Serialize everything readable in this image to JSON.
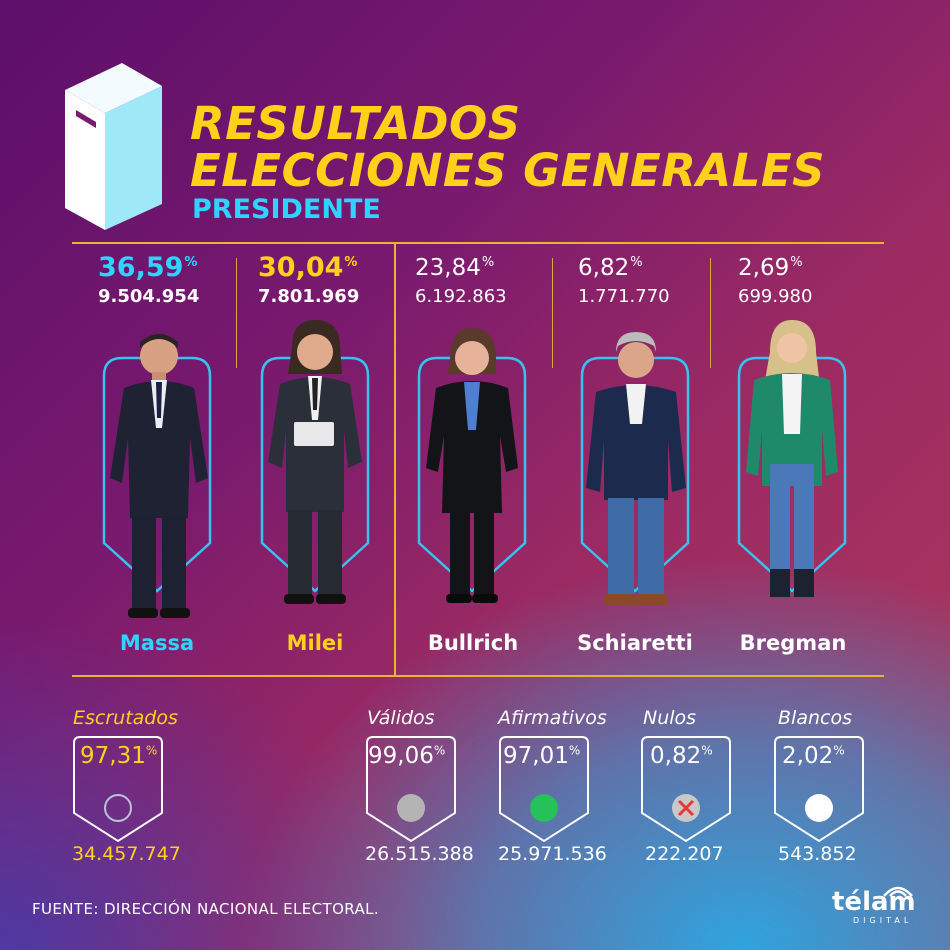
{
  "header": {
    "title_line1": "RESULTADOS",
    "title_line2": "ELECCIONES GENERALES",
    "subtitle": "PRESIDENTE"
  },
  "colors": {
    "yellow": "#ffd11a",
    "cyan": "#2ed3ff",
    "frame": "#35c4f0",
    "divider": "#e8b52e"
  },
  "chart_data": {
    "type": "table",
    "candidates": [
      {
        "name": "Massa",
        "percent": "36,59",
        "votes": "9.504.954",
        "percent_value": 36.59
      },
      {
        "name": "Milei",
        "percent": "30,04",
        "votes": "7.801.969",
        "percent_value": 30.04
      },
      {
        "name": "Bullrich",
        "percent": "23,84",
        "votes": "6.192.863",
        "percent_value": 23.84
      },
      {
        "name": "Schiaretti",
        "percent": "6,82",
        "votes": "1.771.770",
        "percent_value": 6.82
      },
      {
        "name": "Bregman",
        "percent": "2,69",
        "votes": "699.980",
        "percent_value": 2.69
      }
    ],
    "percent_symbol": "%",
    "stats": [
      {
        "label": "Escrutados",
        "percent": "97,31",
        "value": "34.457.747",
        "icon": "empty-circle-icon"
      },
      {
        "label": "Válidos",
        "percent": "99,06",
        "value": "26.515.388",
        "icon": "gray-circle-icon"
      },
      {
        "label": "Afirmativos",
        "percent": "97,01",
        "value": "25.971.536",
        "icon": "green-circle-icon"
      },
      {
        "label": "Nulos",
        "percent": "0,82",
        "value": "222.207",
        "icon": "red-cross-icon"
      },
      {
        "label": "Blancos",
        "percent": "2,02",
        "value": "543.852",
        "icon": "white-circle-icon"
      }
    ]
  },
  "footer": {
    "source": "FUENTE: DIRECCIÓN NACIONAL ELECTORAL.",
    "logo": "télam",
    "logo_sub": "DIGITAL"
  }
}
